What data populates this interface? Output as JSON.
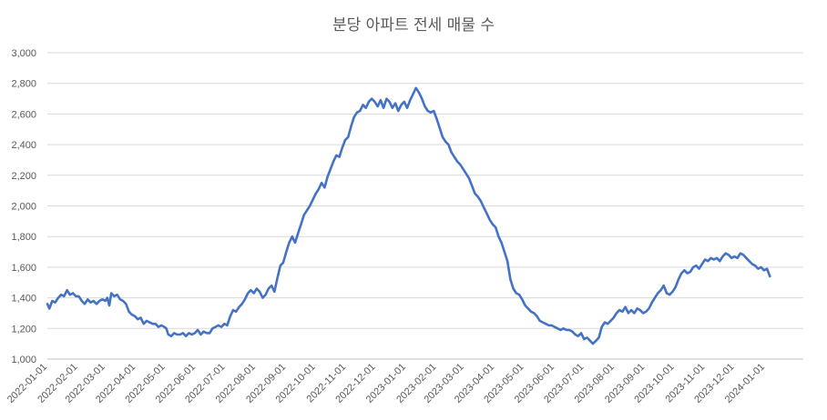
{
  "chart_data": {
    "type": "line",
    "title": "분당 아파트 전세 매물 수",
    "xlabel": "",
    "ylabel": "",
    "ylim": [
      1000,
      3000
    ],
    "yticks": [
      1000,
      1200,
      1400,
      1600,
      1800,
      2000,
      2200,
      2400,
      2600,
      2800,
      3000
    ],
    "ytick_labels": [
      "1,000",
      "1,200",
      "1,400",
      "1,600",
      "1,800",
      "2,000",
      "2,200",
      "2,400",
      "2,600",
      "2,800",
      "3,000"
    ],
    "xlim": [
      "2022-01-01",
      "2024-02-09"
    ],
    "xticks": [
      "2022-01-01",
      "2022-02-01",
      "2022-03-01",
      "2022-04-01",
      "2022-05-01",
      "2022-06-01",
      "2022-07-01",
      "2022-08-01",
      "2022-09-01",
      "2022-10-01",
      "2022-11-01",
      "2022-12-01",
      "2023-01-01",
      "2023-02-01",
      "2023-03-01",
      "2023-04-01",
      "2023-05-01",
      "2023-06-01",
      "2023-07-01",
      "2023-08-01",
      "2023-09-01",
      "2023-10-01",
      "2023-11-01",
      "2023-12-01",
      "2024-01-01"
    ],
    "grid": true,
    "legend": false,
    "line_color": "#4472C4",
    "series": [
      {
        "points": [
          [
            "2022-01-01",
            1360
          ],
          [
            "2022-01-03",
            1330
          ],
          [
            "2022-01-06",
            1380
          ],
          [
            "2022-01-09",
            1370
          ],
          [
            "2022-01-12",
            1400
          ],
          [
            "2022-01-15",
            1420
          ],
          [
            "2022-01-18",
            1410
          ],
          [
            "2022-01-21",
            1450
          ],
          [
            "2022-01-24",
            1420
          ],
          [
            "2022-01-27",
            1430
          ],
          [
            "2022-01-30",
            1410
          ],
          [
            "2022-02-02",
            1410
          ],
          [
            "2022-02-05",
            1380
          ],
          [
            "2022-02-08",
            1360
          ],
          [
            "2022-02-11",
            1390
          ],
          [
            "2022-02-14",
            1370
          ],
          [
            "2022-02-17",
            1380
          ],
          [
            "2022-02-20",
            1360
          ],
          [
            "2022-02-23",
            1380
          ],
          [
            "2022-02-26",
            1390
          ],
          [
            "2022-03-01",
            1380
          ],
          [
            "2022-03-03",
            1400
          ],
          [
            "2022-03-05",
            1350
          ],
          [
            "2022-03-07",
            1430
          ],
          [
            "2022-03-10",
            1410
          ],
          [
            "2022-03-13",
            1420
          ],
          [
            "2022-03-16",
            1390
          ],
          [
            "2022-03-19",
            1380
          ],
          [
            "2022-03-22",
            1360
          ],
          [
            "2022-03-25",
            1310
          ],
          [
            "2022-03-28",
            1290
          ],
          [
            "2022-03-31",
            1280
          ],
          [
            "2022-04-03",
            1260
          ],
          [
            "2022-04-06",
            1270
          ],
          [
            "2022-04-09",
            1230
          ],
          [
            "2022-04-12",
            1250
          ],
          [
            "2022-04-15",
            1240
          ],
          [
            "2022-04-18",
            1230
          ],
          [
            "2022-04-21",
            1230
          ],
          [
            "2022-04-24",
            1210
          ],
          [
            "2022-04-27",
            1220
          ],
          [
            "2022-04-30",
            1210
          ],
          [
            "2022-05-02",
            1200
          ],
          [
            "2022-05-04",
            1160
          ],
          [
            "2022-05-07",
            1150
          ],
          [
            "2022-05-10",
            1170
          ],
          [
            "2022-05-13",
            1160
          ],
          [
            "2022-05-16",
            1160
          ],
          [
            "2022-05-19",
            1170
          ],
          [
            "2022-05-22",
            1150
          ],
          [
            "2022-05-25",
            1170
          ],
          [
            "2022-05-28",
            1160
          ],
          [
            "2022-05-31",
            1170
          ],
          [
            "2022-06-03",
            1190
          ],
          [
            "2022-06-06",
            1160
          ],
          [
            "2022-06-09",
            1180
          ],
          [
            "2022-06-12",
            1170
          ],
          [
            "2022-06-15",
            1170
          ],
          [
            "2022-06-18",
            1200
          ],
          [
            "2022-06-21",
            1210
          ],
          [
            "2022-06-24",
            1220
          ],
          [
            "2022-06-27",
            1210
          ],
          [
            "2022-06-30",
            1230
          ],
          [
            "2022-07-03",
            1220
          ],
          [
            "2022-07-06",
            1280
          ],
          [
            "2022-07-09",
            1320
          ],
          [
            "2022-07-12",
            1310
          ],
          [
            "2022-07-15",
            1340
          ],
          [
            "2022-07-18",
            1360
          ],
          [
            "2022-07-21",
            1390
          ],
          [
            "2022-07-24",
            1430
          ],
          [
            "2022-07-27",
            1450
          ],
          [
            "2022-07-30",
            1430
          ],
          [
            "2022-08-02",
            1460
          ],
          [
            "2022-08-05",
            1440
          ],
          [
            "2022-08-08",
            1400
          ],
          [
            "2022-08-11",
            1420
          ],
          [
            "2022-08-14",
            1460
          ],
          [
            "2022-08-17",
            1480
          ],
          [
            "2022-08-20",
            1440
          ],
          [
            "2022-08-23",
            1530
          ],
          [
            "2022-08-26",
            1610
          ],
          [
            "2022-08-29",
            1630
          ],
          [
            "2022-09-01",
            1700
          ],
          [
            "2022-09-04",
            1760
          ],
          [
            "2022-09-07",
            1800
          ],
          [
            "2022-09-10",
            1760
          ],
          [
            "2022-09-13",
            1820
          ],
          [
            "2022-09-16",
            1880
          ],
          [
            "2022-09-19",
            1940
          ],
          [
            "2022-09-22",
            1970
          ],
          [
            "2022-09-25",
            2000
          ],
          [
            "2022-09-28",
            2040
          ],
          [
            "2022-10-01",
            2080
          ],
          [
            "2022-10-04",
            2110
          ],
          [
            "2022-10-07",
            2150
          ],
          [
            "2022-10-10",
            2120
          ],
          [
            "2022-10-13",
            2190
          ],
          [
            "2022-10-16",
            2240
          ],
          [
            "2022-10-19",
            2290
          ],
          [
            "2022-10-22",
            2330
          ],
          [
            "2022-10-25",
            2320
          ],
          [
            "2022-10-28",
            2380
          ],
          [
            "2022-10-31",
            2430
          ],
          [
            "2022-11-03",
            2450
          ],
          [
            "2022-11-06",
            2520
          ],
          [
            "2022-11-09",
            2580
          ],
          [
            "2022-11-12",
            2610
          ],
          [
            "2022-11-15",
            2620
          ],
          [
            "2022-11-18",
            2660
          ],
          [
            "2022-11-21",
            2640
          ],
          [
            "2022-11-24",
            2680
          ],
          [
            "2022-11-27",
            2700
          ],
          [
            "2022-11-30",
            2680
          ],
          [
            "2022-12-03",
            2650
          ],
          [
            "2022-12-06",
            2690
          ],
          [
            "2022-12-09",
            2640
          ],
          [
            "2022-12-12",
            2700
          ],
          [
            "2022-12-15",
            2680
          ],
          [
            "2022-12-18",
            2640
          ],
          [
            "2022-12-21",
            2670
          ],
          [
            "2022-12-24",
            2620
          ],
          [
            "2022-12-27",
            2660
          ],
          [
            "2022-12-30",
            2680
          ],
          [
            "2023-01-02",
            2640
          ],
          [
            "2023-01-05",
            2690
          ],
          [
            "2023-01-08",
            2730
          ],
          [
            "2023-01-11",
            2770
          ],
          [
            "2023-01-14",
            2740
          ],
          [
            "2023-01-17",
            2700
          ],
          [
            "2023-01-20",
            2650
          ],
          [
            "2023-01-23",
            2620
          ],
          [
            "2023-01-26",
            2610
          ],
          [
            "2023-01-29",
            2620
          ],
          [
            "2023-02-01",
            2570
          ],
          [
            "2023-02-04",
            2510
          ],
          [
            "2023-02-07",
            2450
          ],
          [
            "2023-02-10",
            2420
          ],
          [
            "2023-02-13",
            2400
          ],
          [
            "2023-02-16",
            2350
          ],
          [
            "2023-02-19",
            2320
          ],
          [
            "2023-02-22",
            2290
          ],
          [
            "2023-02-25",
            2270
          ],
          [
            "2023-02-28",
            2240
          ],
          [
            "2023-03-03",
            2210
          ],
          [
            "2023-03-06",
            2180
          ],
          [
            "2023-03-09",
            2130
          ],
          [
            "2023-03-12",
            2080
          ],
          [
            "2023-03-15",
            2060
          ],
          [
            "2023-03-18",
            2030
          ],
          [
            "2023-03-21",
            1990
          ],
          [
            "2023-03-24",
            1950
          ],
          [
            "2023-03-27",
            1910
          ],
          [
            "2023-03-30",
            1880
          ],
          [
            "2023-04-02",
            1860
          ],
          [
            "2023-04-05",
            1800
          ],
          [
            "2023-04-08",
            1760
          ],
          [
            "2023-04-11",
            1700
          ],
          [
            "2023-04-14",
            1640
          ],
          [
            "2023-04-17",
            1520
          ],
          [
            "2023-04-20",
            1460
          ],
          [
            "2023-04-23",
            1430
          ],
          [
            "2023-04-26",
            1420
          ],
          [
            "2023-04-29",
            1390
          ],
          [
            "2023-05-02",
            1350
          ],
          [
            "2023-05-05",
            1330
          ],
          [
            "2023-05-08",
            1310
          ],
          [
            "2023-05-11",
            1300
          ],
          [
            "2023-05-14",
            1280
          ],
          [
            "2023-05-17",
            1250
          ],
          [
            "2023-05-20",
            1240
          ],
          [
            "2023-05-23",
            1230
          ],
          [
            "2023-05-26",
            1220
          ],
          [
            "2023-05-29",
            1220
          ],
          [
            "2023-06-01",
            1210
          ],
          [
            "2023-06-04",
            1200
          ],
          [
            "2023-06-07",
            1190
          ],
          [
            "2023-06-10",
            1200
          ],
          [
            "2023-06-13",
            1190
          ],
          [
            "2023-06-16",
            1190
          ],
          [
            "2023-06-19",
            1180
          ],
          [
            "2023-06-22",
            1160
          ],
          [
            "2023-06-25",
            1150
          ],
          [
            "2023-06-28",
            1170
          ],
          [
            "2023-07-01",
            1130
          ],
          [
            "2023-07-04",
            1140
          ],
          [
            "2023-07-07",
            1120
          ],
          [
            "2023-07-10",
            1100
          ],
          [
            "2023-07-13",
            1120
          ],
          [
            "2023-07-16",
            1140
          ],
          [
            "2023-07-19",
            1210
          ],
          [
            "2023-07-22",
            1240
          ],
          [
            "2023-07-25",
            1230
          ],
          [
            "2023-07-28",
            1250
          ],
          [
            "2023-07-31",
            1270
          ],
          [
            "2023-08-03",
            1300
          ],
          [
            "2023-08-06",
            1320
          ],
          [
            "2023-08-09",
            1310
          ],
          [
            "2023-08-12",
            1340
          ],
          [
            "2023-08-15",
            1300
          ],
          [
            "2023-08-18",
            1320
          ],
          [
            "2023-08-21",
            1300
          ],
          [
            "2023-08-24",
            1330
          ],
          [
            "2023-08-27",
            1320
          ],
          [
            "2023-08-30",
            1300
          ],
          [
            "2023-09-02",
            1310
          ],
          [
            "2023-09-05",
            1330
          ],
          [
            "2023-09-08",
            1370
          ],
          [
            "2023-09-11",
            1400
          ],
          [
            "2023-09-14",
            1430
          ],
          [
            "2023-09-17",
            1450
          ],
          [
            "2023-09-20",
            1480
          ],
          [
            "2023-09-23",
            1430
          ],
          [
            "2023-09-26",
            1420
          ],
          [
            "2023-09-29",
            1440
          ],
          [
            "2023-10-02",
            1470
          ],
          [
            "2023-10-05",
            1520
          ],
          [
            "2023-10-08",
            1560
          ],
          [
            "2023-10-11",
            1580
          ],
          [
            "2023-10-14",
            1560
          ],
          [
            "2023-10-17",
            1570
          ],
          [
            "2023-10-20",
            1600
          ],
          [
            "2023-10-23",
            1610
          ],
          [
            "2023-10-26",
            1590
          ],
          [
            "2023-10-29",
            1620
          ],
          [
            "2023-11-01",
            1650
          ],
          [
            "2023-11-04",
            1640
          ],
          [
            "2023-11-07",
            1660
          ],
          [
            "2023-11-10",
            1650
          ],
          [
            "2023-11-13",
            1660
          ],
          [
            "2023-11-16",
            1640
          ],
          [
            "2023-11-19",
            1670
          ],
          [
            "2023-11-22",
            1690
          ],
          [
            "2023-11-25",
            1680
          ],
          [
            "2023-11-28",
            1660
          ],
          [
            "2023-12-01",
            1670
          ],
          [
            "2023-12-04",
            1660
          ],
          [
            "2023-12-07",
            1690
          ],
          [
            "2023-12-10",
            1680
          ],
          [
            "2023-12-13",
            1660
          ],
          [
            "2023-12-16",
            1640
          ],
          [
            "2023-12-19",
            1620
          ],
          [
            "2023-12-22",
            1610
          ],
          [
            "2023-12-25",
            1590
          ],
          [
            "2023-12-28",
            1600
          ],
          [
            "2023-12-31",
            1580
          ],
          [
            "2024-01-03",
            1590
          ],
          [
            "2024-01-06",
            1540
          ]
        ]
      }
    ]
  }
}
